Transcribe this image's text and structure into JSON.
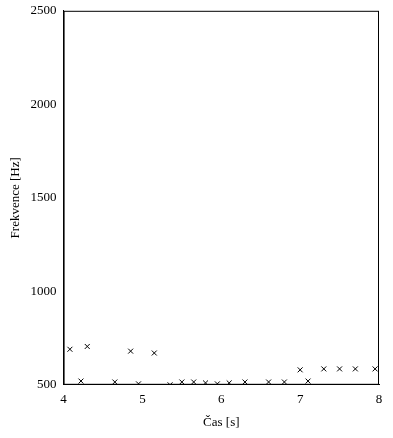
{
  "chart_data": {
    "type": "scatter",
    "x_label": "Čas [s]",
    "y_label": "Frekvence [Hz]",
    "x": [
      4.08,
      4.3,
      4.85,
      5.15,
      4.22,
      4.65,
      4.95,
      5.35,
      5.5,
      5.65,
      5.8,
      5.95,
      6.1,
      6.3,
      6.6,
      6.8,
      7.0,
      7.1,
      7.3,
      7.5,
      7.7,
      7.95
    ],
    "values": [
      690,
      705,
      680,
      670,
      520,
      515,
      505,
      500,
      515,
      515,
      510,
      505,
      510,
      515,
      515,
      515,
      580,
      520,
      585,
      585,
      585,
      585
    ],
    "color": "#000000",
    "marker": "x",
    "xlim": [
      4,
      8
    ],
    "xticks": [
      4,
      5,
      6,
      7,
      8
    ],
    "ylim": [
      500,
      2500
    ],
    "yticks": [
      500,
      1000,
      1500,
      2000,
      2500
    ],
    "grid": false
  }
}
